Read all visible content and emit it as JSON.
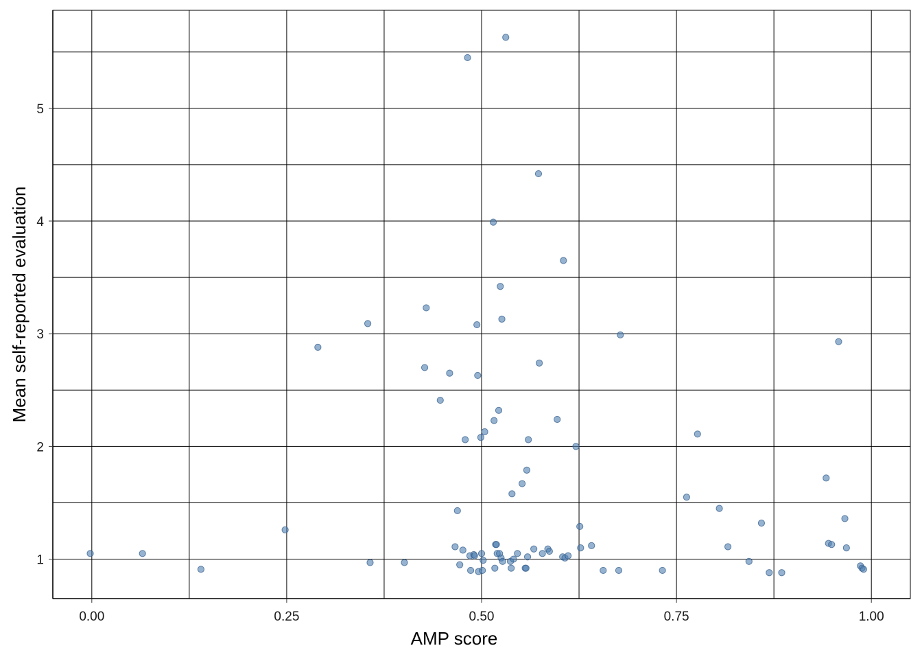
{
  "chart_data": {
    "type": "scatter",
    "title": "",
    "xlabel": "AMP score",
    "ylabel": "Mean self-reported evaluation",
    "xlim": [
      -0.05,
      1.05
    ],
    "ylim": [
      0.65,
      5.87
    ],
    "x_ticks": [
      0.0,
      0.25,
      0.5,
      0.75,
      1.0
    ],
    "x_tick_labels": [
      "0.00",
      "0.25",
      "0.50",
      "0.75",
      "1.00"
    ],
    "y_ticks": [
      1,
      2,
      3,
      4,
      5
    ],
    "y_tick_labels": [
      "1",
      "2",
      "3",
      "4",
      "5"
    ],
    "x_minor_grid": [
      0.125,
      0.375,
      0.625,
      0.875
    ],
    "y_minor_grid": [
      1.5,
      2.5,
      3.5,
      4.5,
      5.5
    ],
    "grid": true,
    "point_color": "#4f7eb0",
    "point_opacity": 0.6,
    "points": [
      {
        "x": -0.002,
        "y": 1.05
      },
      {
        "x": 0.065,
        "y": 1.05
      },
      {
        "x": 0.14,
        "y": 0.91
      },
      {
        "x": 0.248,
        "y": 1.26
      },
      {
        "x": 0.29,
        "y": 2.88
      },
      {
        "x": 0.354,
        "y": 3.09
      },
      {
        "x": 0.357,
        "y": 0.97
      },
      {
        "x": 0.401,
        "y": 0.97
      },
      {
        "x": 0.427,
        "y": 2.7
      },
      {
        "x": 0.429,
        "y": 3.23
      },
      {
        "x": 0.447,
        "y": 2.41
      },
      {
        "x": 0.459,
        "y": 2.65
      },
      {
        "x": 0.466,
        "y": 1.11
      },
      {
        "x": 0.469,
        "y": 1.43
      },
      {
        "x": 0.472,
        "y": 0.95
      },
      {
        "x": 0.476,
        "y": 1.08
      },
      {
        "x": 0.479,
        "y": 2.06
      },
      {
        "x": 0.482,
        "y": 5.45
      },
      {
        "x": 0.485,
        "y": 1.03
      },
      {
        "x": 0.486,
        "y": 0.9
      },
      {
        "x": 0.49,
        "y": 1.04
      },
      {
        "x": 0.491,
        "y": 1.03
      },
      {
        "x": 0.494,
        "y": 3.08
      },
      {
        "x": 0.495,
        "y": 2.63
      },
      {
        "x": 0.496,
        "y": 0.89
      },
      {
        "x": 0.499,
        "y": 2.08
      },
      {
        "x": 0.5,
        "y": 1.05
      },
      {
        "x": 0.501,
        "y": 0.9
      },
      {
        "x": 0.502,
        "y": 0.99
      },
      {
        "x": 0.504,
        "y": 2.13
      },
      {
        "x": 0.515,
        "y": 3.99
      },
      {
        "x": 0.516,
        "y": 2.23
      },
      {
        "x": 0.517,
        "y": 0.92
      },
      {
        "x": 0.518,
        "y": 1.13
      },
      {
        "x": 0.519,
        "y": 1.13
      },
      {
        "x": 0.52,
        "y": 1.05
      },
      {
        "x": 0.522,
        "y": 2.32
      },
      {
        "x": 0.523,
        "y": 1.05
      },
      {
        "x": 0.524,
        "y": 3.42
      },
      {
        "x": 0.525,
        "y": 1.01
      },
      {
        "x": 0.526,
        "y": 3.13
      },
      {
        "x": 0.527,
        "y": 0.98
      },
      {
        "x": 0.531,
        "y": 5.63
      },
      {
        "x": 0.537,
        "y": 0.98
      },
      {
        "x": 0.538,
        "y": 0.92
      },
      {
        "x": 0.539,
        "y": 1.58
      },
      {
        "x": 0.541,
        "y": 1.0
      },
      {
        "x": 0.546,
        "y": 1.05
      },
      {
        "x": 0.552,
        "y": 1.67
      },
      {
        "x": 0.556,
        "y": 0.92
      },
      {
        "x": 0.557,
        "y": 0.92
      },
      {
        "x": 0.558,
        "y": 1.79
      },
      {
        "x": 0.559,
        "y": 1.02
      },
      {
        "x": 0.56,
        "y": 2.06
      },
      {
        "x": 0.567,
        "y": 1.09
      },
      {
        "x": 0.573,
        "y": 4.42
      },
      {
        "x": 0.574,
        "y": 2.74
      },
      {
        "x": 0.578,
        "y": 1.05
      },
      {
        "x": 0.585,
        "y": 1.09
      },
      {
        "x": 0.587,
        "y": 1.07
      },
      {
        "x": 0.597,
        "y": 2.24
      },
      {
        "x": 0.604,
        "y": 1.02
      },
      {
        "x": 0.605,
        "y": 3.65
      },
      {
        "x": 0.607,
        "y": 1.01
      },
      {
        "x": 0.611,
        "y": 1.03
      },
      {
        "x": 0.621,
        "y": 2.0
      },
      {
        "x": 0.626,
        "y": 1.29
      },
      {
        "x": 0.627,
        "y": 1.1
      },
      {
        "x": 0.641,
        "y": 1.12
      },
      {
        "x": 0.656,
        "y": 0.9
      },
      {
        "x": 0.676,
        "y": 0.9
      },
      {
        "x": 0.678,
        "y": 2.99
      },
      {
        "x": 0.732,
        "y": 0.9
      },
      {
        "x": 0.763,
        "y": 1.55
      },
      {
        "x": 0.777,
        "y": 2.11
      },
      {
        "x": 0.805,
        "y": 1.45
      },
      {
        "x": 0.816,
        "y": 1.11
      },
      {
        "x": 0.843,
        "y": 0.98
      },
      {
        "x": 0.859,
        "y": 1.32
      },
      {
        "x": 0.869,
        "y": 0.88
      },
      {
        "x": 0.885,
        "y": 0.88
      },
      {
        "x": 0.942,
        "y": 1.72
      },
      {
        "x": 0.945,
        "y": 1.14
      },
      {
        "x": 0.949,
        "y": 1.13
      },
      {
        "x": 0.958,
        "y": 2.93
      },
      {
        "x": 0.966,
        "y": 1.36
      },
      {
        "x": 0.968,
        "y": 1.1
      },
      {
        "x": 0.986,
        "y": 0.94
      },
      {
        "x": 0.988,
        "y": 0.92
      },
      {
        "x": 0.99,
        "y": 0.91
      }
    ]
  }
}
